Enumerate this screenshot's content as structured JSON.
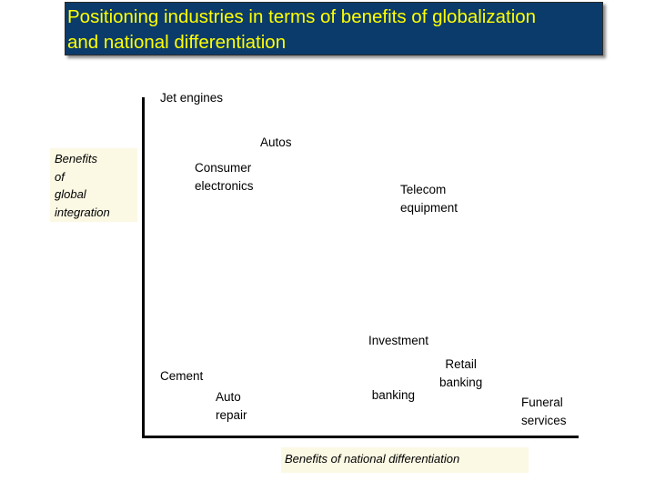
{
  "title": {
    "line1": "Positioning industries in terms of benefits of globalization",
    "line2": "and national differentiation"
  },
  "axes": {
    "y_label_lines": [
      "Benefits",
      "of",
      "global",
      "integration"
    ],
    "x_label": "Benefits of national differentiation"
  },
  "industries": [
    {
      "lines": [
        "Jet engines"
      ]
    },
    {
      "lines": [
        "Autos"
      ]
    },
    {
      "lines": [
        "Consumer",
        "electronics"
      ]
    },
    {
      "lines": [
        "Telecom",
        "equipment"
      ]
    },
    {
      "lines": [
        "Investment",
        " banking"
      ]
    },
    {
      "lines": [
        "Cement"
      ]
    },
    {
      "lines": [
        "Retail",
        "banking"
      ]
    },
    {
      "lines": [
        "Auto",
        "repair"
      ]
    },
    {
      "lines": [
        "Funeral",
        "services"
      ]
    }
  ],
  "colors": {
    "title_background": "#0b3b6b",
    "title_text": "#ffff00",
    "label_background": "#fbf8e4"
  }
}
